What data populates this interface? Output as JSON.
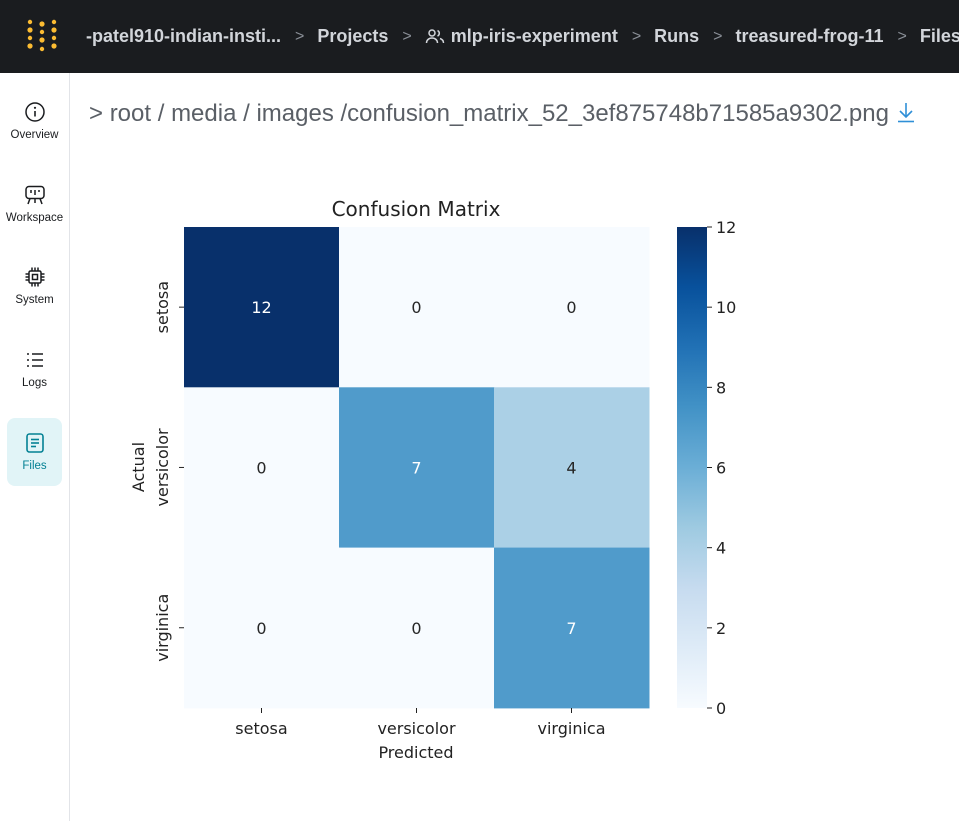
{
  "breadcrumb": {
    "entity": "-patel910-indian-insti...",
    "projects": "Projects",
    "project": "mlp-iris-experiment",
    "runs": "Runs",
    "run": "treasured-frog-11",
    "files": "Files",
    "separator": ">"
  },
  "sidebar": {
    "items": [
      {
        "label": "Overview",
        "icon": "info-icon"
      },
      {
        "label": "Workspace",
        "icon": "workspace-icon"
      },
      {
        "label": "System",
        "icon": "chip-icon"
      },
      {
        "label": "Logs",
        "icon": "list-icon"
      },
      {
        "label": "Files",
        "icon": "file-icon",
        "active": true
      }
    ]
  },
  "file_path": {
    "prefix": ">",
    "segments": [
      "root",
      "media",
      "images"
    ],
    "separator": "/",
    "filename": "confusion_matrix_52_3ef875748b71585a9302.png",
    "download_icon": "download-icon"
  },
  "colors": {
    "topbar_bg": "#1a1c1f",
    "logo": "#fcbc32",
    "active_accent": "#038194",
    "active_bg": "#e1f4f7",
    "link": "#2f8fd7"
  },
  "chart_data": {
    "type": "heatmap",
    "title": "Confusion Matrix",
    "xlabel": "Predicted",
    "ylabel": "Actual",
    "x_categories": [
      "setosa",
      "versicolor",
      "virginica"
    ],
    "y_categories": [
      "setosa",
      "versicolor",
      "virginica"
    ],
    "values": [
      [
        12,
        0,
        0
      ],
      [
        0,
        7,
        4
      ],
      [
        0,
        0,
        7
      ]
    ],
    "colorbar": {
      "min": 0,
      "max": 12,
      "ticks": [
        "12",
        "10",
        "8",
        "6",
        "4",
        "2",
        "0"
      ]
    },
    "colormap": "Blues"
  }
}
